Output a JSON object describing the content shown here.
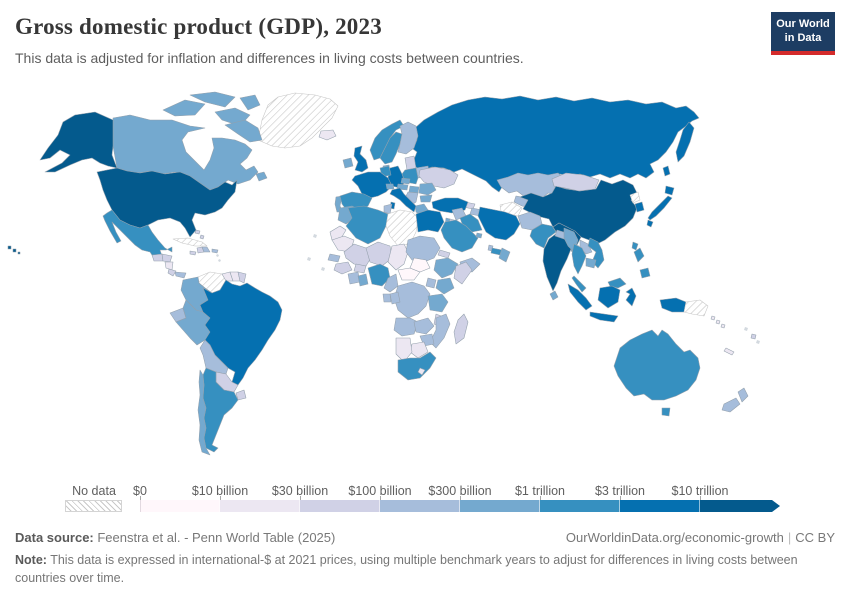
{
  "header": {
    "title": "Gross domestic product (GDP), 2023",
    "subtitle": "This data is adjusted for inflation and differences in living costs between countries.",
    "logo_line1": "Our World",
    "logo_line2": "in Data"
  },
  "legend": {
    "no_data_label": "No data",
    "tick_labels": [
      "$0",
      "$10 billion",
      "$30 billion",
      "$100 billion",
      "$300 billion",
      "$1 trillion",
      "$3 trillion",
      "$10 trillion"
    ],
    "colors": [
      "#fff7fb",
      "#ece7f2",
      "#d0d1e6",
      "#a6bddb",
      "#74a9cf",
      "#3690c0",
      "#0570b0",
      "#045a8d"
    ],
    "no_data_border": "#d4d4d4"
  },
  "footer": {
    "source_label": "Data source:",
    "source_text": " Feenstra et al. - Penn World Table (2025)",
    "url": "OurWorldinData.org/economic-growth",
    "divider": "|",
    "license": "CC BY",
    "note_label": "Note:",
    "note_text": " This data is expressed in international-$ at 2021 prices, using multiple benchmark years to adjust for differences in living costs between countries over time."
  },
  "chart_data": {
    "type": "choropleth_map",
    "title": "Gross domestic product (GDP), 2023",
    "unit": "international-$ at 2021 prices",
    "legend_position": "bottom",
    "bands": [
      "$0-$10 billion",
      "$10-$30 billion",
      "$30-$100 billion",
      "$100-$300 billion",
      "$300 billion-$1 trillion",
      "$1-$3 trillion",
      "$3-$10 trillion",
      "$10+ trillion"
    ],
    "countries": [
      {
        "name": "greenland",
        "band": "no-data"
      },
      {
        "name": "canada",
        "band": 4
      },
      {
        "name": "united-states",
        "band": 7
      },
      {
        "name": "mexico",
        "band": 5
      },
      {
        "name": "guatemala",
        "band": 2
      },
      {
        "name": "honduras",
        "band": 2
      },
      {
        "name": "nicaragua",
        "band": 1
      },
      {
        "name": "costa-rica",
        "band": 2
      },
      {
        "name": "panama",
        "band": 3
      },
      {
        "name": "cuba",
        "band": "no-data"
      },
      {
        "name": "jamaica",
        "band": 2
      },
      {
        "name": "haiti",
        "band": 2
      },
      {
        "name": "dominican-republic",
        "band": 3
      },
      {
        "name": "puerto-rico",
        "band": 3
      },
      {
        "name": "bahamas",
        "band": 2
      },
      {
        "name": "colombia",
        "band": 4
      },
      {
        "name": "venezuela",
        "band": "no-data"
      },
      {
        "name": "guyana",
        "band": 1
      },
      {
        "name": "suriname",
        "band": 1
      },
      {
        "name": "french-guiana",
        "band": 2
      },
      {
        "name": "ecuador",
        "band": 3
      },
      {
        "name": "peru",
        "band": 4
      },
      {
        "name": "brazil",
        "band": 6
      },
      {
        "name": "bolivia",
        "band": 3
      },
      {
        "name": "paraguay",
        "band": 2
      },
      {
        "name": "uruguay",
        "band": 2
      },
      {
        "name": "argentina",
        "band": 5
      },
      {
        "name": "chile",
        "band": 4
      },
      {
        "name": "iceland",
        "band": 1
      },
      {
        "name": "ireland",
        "band": 4
      },
      {
        "name": "united-kingdom",
        "band": 6
      },
      {
        "name": "portugal",
        "band": 4
      },
      {
        "name": "spain",
        "band": 5
      },
      {
        "name": "france",
        "band": 6
      },
      {
        "name": "belgium-netherlands",
        "band": 5
      },
      {
        "name": "germany",
        "band": 6
      },
      {
        "name": "denmark",
        "band": 4
      },
      {
        "name": "norway",
        "band": 5
      },
      {
        "name": "sweden",
        "band": 5
      },
      {
        "name": "finland",
        "band": 3
      },
      {
        "name": "baltic-states",
        "band": 2
      },
      {
        "name": "belarus",
        "band": 3
      },
      {
        "name": "poland",
        "band": 5
      },
      {
        "name": "czechia",
        "band": 4
      },
      {
        "name": "austria",
        "band": 4
      },
      {
        "name": "switzerland",
        "band": 4
      },
      {
        "name": "italy",
        "band": 6
      },
      {
        "name": "ukraine",
        "band": 2
      },
      {
        "name": "romania",
        "band": 4
      },
      {
        "name": "hungary",
        "band": 4
      },
      {
        "name": "balkans",
        "band": 3
      },
      {
        "name": "bulgaria",
        "band": 4
      },
      {
        "name": "greece",
        "band": 4
      },
      {
        "name": "russia",
        "band": 6
      },
      {
        "name": "kazakhstan",
        "band": 3
      },
      {
        "name": "uzbekistan",
        "band": 3
      },
      {
        "name": "turkmenistan",
        "band": "no-data"
      },
      {
        "name": "kyrgyzstan",
        "band": 2
      },
      {
        "name": "tajikistan",
        "band": 1
      },
      {
        "name": "georgia",
        "band": 2
      },
      {
        "name": "azerbaijan",
        "band": 3
      },
      {
        "name": "turkey",
        "band": 6
      },
      {
        "name": "syria",
        "band": 3
      },
      {
        "name": "israel",
        "band": 4
      },
      {
        "name": "jordan",
        "band": 2
      },
      {
        "name": "iraq",
        "band": 5
      },
      {
        "name": "saudi-arabia",
        "band": 5
      },
      {
        "name": "kuwait",
        "band": 4
      },
      {
        "name": "qatar",
        "band": 3
      },
      {
        "name": "united-arab-emirates",
        "band": 5
      },
      {
        "name": "oman",
        "band": 4
      },
      {
        "name": "yemen",
        "band": 3
      },
      {
        "name": "iran",
        "band": 6
      },
      {
        "name": "afghanistan",
        "band": 3
      },
      {
        "name": "pakistan",
        "band": 5
      },
      {
        "name": "india",
        "band": 7
      },
      {
        "name": "nepal",
        "band": 3
      },
      {
        "name": "bangladesh",
        "band": 4
      },
      {
        "name": "sri-lanka",
        "band": 4
      },
      {
        "name": "myanmar",
        "band": 4
      },
      {
        "name": "thailand",
        "band": 5
      },
      {
        "name": "laos",
        "band": 3
      },
      {
        "name": "cambodia",
        "band": 4
      },
      {
        "name": "vietnam",
        "band": 5
      },
      {
        "name": "malaysia",
        "band": 5
      },
      {
        "name": "indonesia",
        "band": 6
      },
      {
        "name": "philippines",
        "band": 5
      },
      {
        "name": "taiwan",
        "band": 5
      },
      {
        "name": "china",
        "band": 7
      },
      {
        "name": "mongolia",
        "band": 2
      },
      {
        "name": "north-korea",
        "band": "no-data"
      },
      {
        "name": "south-korea",
        "band": 6
      },
      {
        "name": "japan",
        "band": 6
      },
      {
        "name": "morocco",
        "band": 4
      },
      {
        "name": "western-sahara",
        "band": 1
      },
      {
        "name": "algeria",
        "band": 5
      },
      {
        "name": "tunisia",
        "band": 3
      },
      {
        "name": "libya",
        "band": "no-data"
      },
      {
        "name": "egypt",
        "band": 6
      },
      {
        "name": "mauritania",
        "band": 1
      },
      {
        "name": "mali",
        "band": 2
      },
      {
        "name": "senegal",
        "band": 3
      },
      {
        "name": "guinea",
        "band": 2
      },
      {
        "name": "ivory-coast",
        "band": 3
      },
      {
        "name": "ghana",
        "band": 4
      },
      {
        "name": "burkina-faso",
        "band": 2
      },
      {
        "name": "niger",
        "band": 2
      },
      {
        "name": "nigeria",
        "band": 5
      },
      {
        "name": "chad",
        "band": 1
      },
      {
        "name": "cameroon",
        "band": 3
      },
      {
        "name": "central-african-republic",
        "band": 0
      },
      {
        "name": "south-sudan",
        "band": 0
      },
      {
        "name": "sudan",
        "band": 3
      },
      {
        "name": "eritrea",
        "band": 2
      },
      {
        "name": "ethiopia",
        "band": 4
      },
      {
        "name": "somalia",
        "band": 2
      },
      {
        "name": "kenya",
        "band": 4
      },
      {
        "name": "uganda",
        "band": 3
      },
      {
        "name": "drc",
        "band": 3
      },
      {
        "name": "congo",
        "band": 3
      },
      {
        "name": "gabon",
        "band": 3
      },
      {
        "name": "tanzania",
        "band": 4
      },
      {
        "name": "angola",
        "band": 3
      },
      {
        "name": "zambia",
        "band": 3
      },
      {
        "name": "malawi",
        "band": 2
      },
      {
        "name": "mozambique",
        "band": 3
      },
      {
        "name": "zimbabwe",
        "band": 3
      },
      {
        "name": "botswana",
        "band": 1
      },
      {
        "name": "namibia",
        "band": 1
      },
      {
        "name": "south-africa",
        "band": 5
      },
      {
        "name": "lesotho",
        "band": 1
      },
      {
        "name": "madagascar",
        "band": 2
      },
      {
        "name": "australia",
        "band": 5
      },
      {
        "name": "new-zealand",
        "band": 3
      },
      {
        "name": "papua-new-guinea",
        "band": "no-data"
      },
      {
        "name": "fiji",
        "band": 2
      },
      {
        "name": "solomon-islands",
        "band": 1
      },
      {
        "name": "new-caledonia",
        "band": 1
      }
    ]
  }
}
